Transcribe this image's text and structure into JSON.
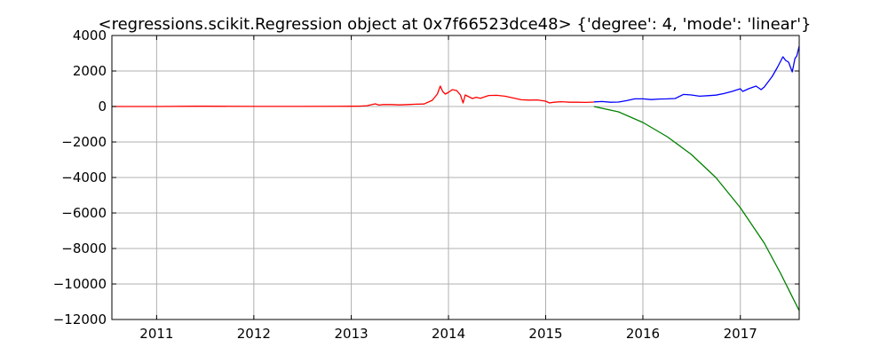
{
  "chart_data": {
    "type": "line",
    "title": "<regressions.scikit.Regression object at 0x7f66523dce48> {'degree': 4, 'mode': 'linear'}",
    "xlabel": "",
    "ylabel": "",
    "xlim": [
      "2010-07-17",
      "2017-08-10"
    ],
    "ylim": [
      -12000,
      4000
    ],
    "grid": true,
    "x_tick_labels": [
      "2011",
      "2012",
      "2013",
      "2014",
      "2015",
      "2016",
      "2017"
    ],
    "y_tick_labels": [
      "4000",
      "2000",
      "0",
      "−2000",
      "−4000",
      "−6000",
      "−8000",
      "−10000",
      "−12000"
    ],
    "y_ticks": [
      4000,
      2000,
      0,
      -2000,
      -4000,
      -6000,
      -8000,
      -10000,
      -12000
    ],
    "series": [
      {
        "color": "#ff0000",
        "points": [
          [
            "2010-07-17",
            0
          ],
          [
            "2011-01-01",
            0.3
          ],
          [
            "2011-06-01",
            15
          ],
          [
            "2011-07-01",
            14
          ],
          [
            "2012-01-01",
            6
          ],
          [
            "2012-07-01",
            7
          ],
          [
            "2013-01-01",
            13
          ],
          [
            "2013-02-01",
            20
          ],
          [
            "2013-03-01",
            45
          ],
          [
            "2013-04-01",
            150
          ],
          [
            "2013-04-15",
            80
          ],
          [
            "2013-05-01",
            110
          ],
          [
            "2013-06-01",
            110
          ],
          [
            "2013-07-01",
            90
          ],
          [
            "2013-08-01",
            110
          ],
          [
            "2013-09-01",
            130
          ],
          [
            "2013-10-01",
            140
          ],
          [
            "2013-11-01",
            350
          ],
          [
            "2013-11-20",
            700
          ],
          [
            "2013-12-01",
            1150
          ],
          [
            "2013-12-10",
            850
          ],
          [
            "2013-12-20",
            700
          ],
          [
            "2014-01-01",
            800
          ],
          [
            "2014-01-15",
            950
          ],
          [
            "2014-02-01",
            900
          ],
          [
            "2014-02-15",
            650
          ],
          [
            "2014-02-25",
            200
          ],
          [
            "2014-03-05",
            650
          ],
          [
            "2014-04-01",
            450
          ],
          [
            "2014-04-15",
            520
          ],
          [
            "2014-05-01",
            460
          ],
          [
            "2014-06-01",
            620
          ],
          [
            "2014-07-01",
            630
          ],
          [
            "2014-08-01",
            580
          ],
          [
            "2014-09-01",
            480
          ],
          [
            "2014-10-01",
            380
          ],
          [
            "2014-11-01",
            360
          ],
          [
            "2014-12-01",
            370
          ],
          [
            "2015-01-01",
            300
          ],
          [
            "2015-01-15",
            200
          ],
          [
            "2015-02-01",
            240
          ],
          [
            "2015-03-01",
            270
          ],
          [
            "2015-04-01",
            240
          ],
          [
            "2015-05-01",
            240
          ],
          [
            "2015-06-01",
            230
          ],
          [
            "2015-07-01",
            250
          ]
        ]
      },
      {
        "color": "#0000ff",
        "points": [
          [
            "2015-07-01",
            260
          ],
          [
            "2015-08-01",
            280
          ],
          [
            "2015-09-01",
            240
          ],
          [
            "2015-10-01",
            250
          ],
          [
            "2015-11-01",
            330
          ],
          [
            "2015-12-01",
            430
          ],
          [
            "2016-01-01",
            430
          ],
          [
            "2016-02-01",
            390
          ],
          [
            "2016-03-01",
            420
          ],
          [
            "2016-04-01",
            430
          ],
          [
            "2016-05-01",
            450
          ],
          [
            "2016-06-01",
            680
          ],
          [
            "2016-07-01",
            650
          ],
          [
            "2016-08-01",
            580
          ],
          [
            "2016-09-01",
            610
          ],
          [
            "2016-10-01",
            640
          ],
          [
            "2016-11-01",
            730
          ],
          [
            "2016-12-01",
            850
          ],
          [
            "2017-01-01",
            1000
          ],
          [
            "2017-01-10",
            850
          ],
          [
            "2017-02-01",
            1000
          ],
          [
            "2017-03-01",
            1150
          ],
          [
            "2017-03-20",
            950
          ],
          [
            "2017-04-01",
            1100
          ],
          [
            "2017-05-01",
            1700
          ],
          [
            "2017-05-20",
            2200
          ],
          [
            "2017-06-10",
            2800
          ],
          [
            "2017-06-20",
            2600
          ],
          [
            "2017-07-01",
            2500
          ],
          [
            "2017-07-15",
            1950
          ],
          [
            "2017-07-25",
            2700
          ],
          [
            "2017-08-01",
            2850
          ],
          [
            "2017-08-10",
            3400
          ]
        ]
      },
      {
        "color": "#008000",
        "points": [
          [
            "2015-07-01",
            0
          ],
          [
            "2015-10-01",
            -300
          ],
          [
            "2016-01-01",
            -900
          ],
          [
            "2016-04-01",
            -1700
          ],
          [
            "2016-07-01",
            -2700
          ],
          [
            "2016-10-01",
            -4000
          ],
          [
            "2017-01-01",
            -5700
          ],
          [
            "2017-04-01",
            -7700
          ],
          [
            "2017-06-01",
            -9400
          ],
          [
            "2017-08-10",
            -11500
          ]
        ]
      }
    ]
  }
}
